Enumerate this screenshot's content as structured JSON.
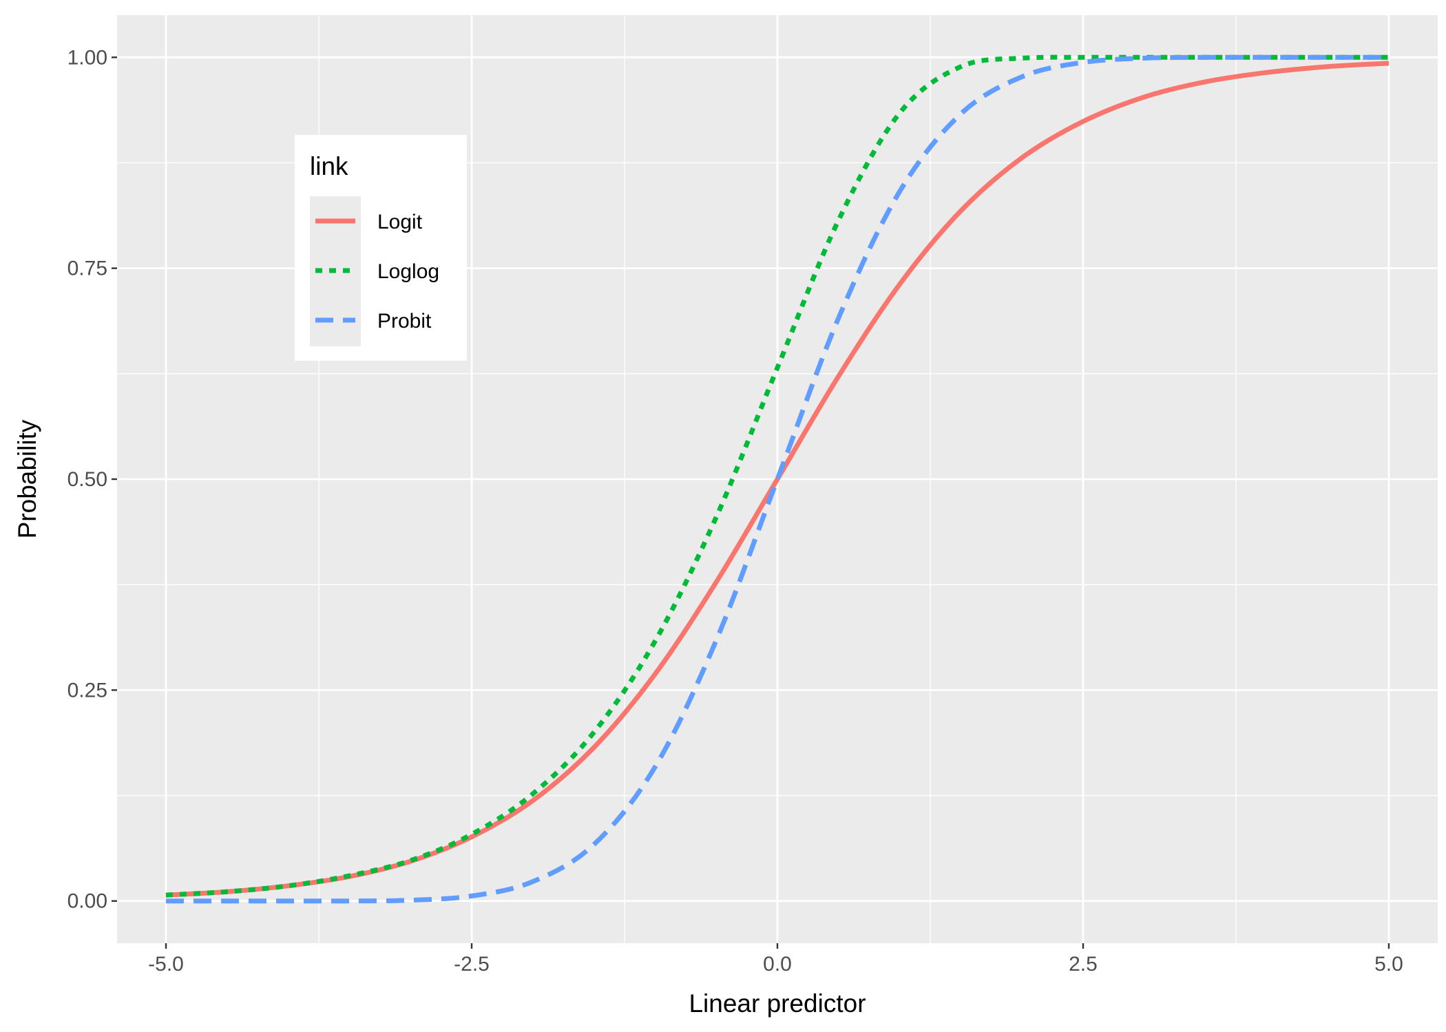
{
  "chart_data": {
    "type": "line",
    "xlabel": "Linear predictor",
    "ylabel": "Probability",
    "xlim": [
      -5.4,
      5.4
    ],
    "ylim": [
      -0.05,
      1.05
    ],
    "x_ticks": [
      -5.0,
      -2.5,
      0.0,
      2.5,
      5.0
    ],
    "x_tick_labels": [
      "-5.0",
      "-2.5",
      "0.0",
      "2.5",
      "5.0"
    ],
    "y_ticks": [
      0.0,
      0.25,
      0.5,
      0.75,
      1.0
    ],
    "y_tick_labels": [
      "0.00",
      "0.25",
      "0.50",
      "0.75",
      "1.00"
    ],
    "grid": true,
    "legend": {
      "title": "link",
      "position": "top-left"
    },
    "x": [
      -5.0,
      -4.5,
      -4.0,
      -3.5,
      -3.0,
      -2.5,
      -2.0,
      -1.5,
      -1.0,
      -0.5,
      0.0,
      0.5,
      1.0,
      1.5,
      2.0,
      2.5,
      3.0,
      3.5,
      4.0,
      4.5,
      5.0
    ],
    "series": [
      {
        "name": "Logit",
        "color": "#F8766D",
        "linestyle": "solid",
        "values": [
          0.007,
          0.011,
          0.018,
          0.029,
          0.047,
          0.076,
          0.119,
          0.182,
          0.269,
          0.378,
          0.5,
          0.622,
          0.731,
          0.818,
          0.881,
          0.924,
          0.953,
          0.971,
          0.982,
          0.989,
          0.993
        ]
      },
      {
        "name": "Loglog",
        "color": "#00BA38",
        "linestyle": "dotted",
        "values": [
          0.007,
          0.011,
          0.018,
          0.03,
          0.048,
          0.079,
          0.127,
          0.2,
          0.308,
          0.455,
          0.632,
          0.807,
          0.934,
          0.989,
          0.999,
          1.0,
          1.0,
          1.0,
          1.0,
          1.0,
          1.0
        ]
      },
      {
        "name": "Probit",
        "color": "#619CFF",
        "linestyle": "dashed",
        "values": [
          0.0,
          0.0,
          0.0,
          0.0,
          0.001,
          0.006,
          0.023,
          0.067,
          0.159,
          0.309,
          0.5,
          0.691,
          0.841,
          0.933,
          0.977,
          0.994,
          0.999,
          1.0,
          1.0,
          1.0,
          1.0
        ]
      }
    ]
  }
}
